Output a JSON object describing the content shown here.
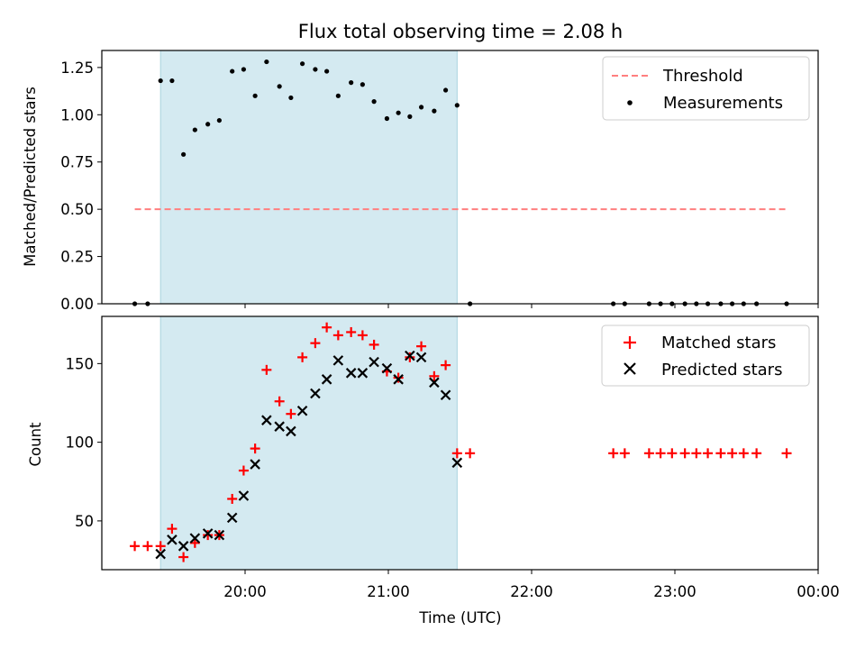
{
  "chart_data": [
    {
      "type": "scatter",
      "title": "Flux total observing time = 2.08 h",
      "ylabel": "Matched/Predicted stars",
      "xlabel": "",
      "ylim": [
        0,
        1.34
      ],
      "yticks": [
        "0.00",
        "0.25",
        "0.50",
        "0.75",
        "1.00",
        "1.25"
      ],
      "highlight_span": {
        "start_hour": 19.41,
        "end_hour": 21.48,
        "color": "#d4eaf1"
      },
      "threshold": {
        "name": "Threshold",
        "value": 0.5,
        "x_start_hour": 19.23,
        "x_end_hour": 23.78,
        "color": "#ff7f7f"
      },
      "series": [
        {
          "name": "Measurements",
          "color": "#000000",
          "x_hours": [
            19.23,
            19.32,
            19.41,
            19.49,
            19.57,
            19.65,
            19.74,
            19.82,
            19.91,
            19.99,
            20.07,
            20.15,
            20.24,
            20.32,
            20.4,
            20.49,
            20.57,
            20.65,
            20.74,
            20.82,
            20.9,
            20.99,
            21.07,
            21.15,
            21.23,
            21.32,
            21.4,
            21.48,
            21.57,
            22.57,
            22.65,
            22.82,
            22.9,
            22.98,
            23.07,
            23.15,
            23.23,
            23.32,
            23.4,
            23.48,
            23.57,
            23.78
          ],
          "values": [
            0.0,
            0.0,
            1.18,
            1.18,
            0.79,
            0.92,
            0.95,
            0.97,
            1.23,
            1.24,
            1.1,
            1.28,
            1.15,
            1.09,
            1.27,
            1.24,
            1.23,
            1.1,
            1.17,
            1.16,
            1.07,
            0.98,
            1.01,
            0.99,
            1.04,
            1.02,
            1.13,
            1.05,
            0.0,
            0.0,
            0.0,
            0.0,
            0.0,
            0.0,
            0.0,
            0.0,
            0.0,
            0.0,
            0.0,
            0.0,
            0.0,
            0.0
          ]
        }
      ]
    },
    {
      "type": "scatter",
      "title": "",
      "ylabel": "Count",
      "xlabel": "Time (UTC)",
      "ylim": [
        19,
        180
      ],
      "yticks": [
        "50",
        "100",
        "150"
      ],
      "xlim_hours": [
        19.0,
        24.0
      ],
      "xticks": [
        "20:00",
        "21:00",
        "22:00",
        "23:00",
        "00:00"
      ],
      "highlight_span": {
        "start_hour": 19.41,
        "end_hour": 21.48,
        "color": "#d4eaf1"
      },
      "series": [
        {
          "name": "Matched stars",
          "marker": "+",
          "color": "#ff0000",
          "x_hours": [
            19.23,
            19.32,
            19.41,
            19.49,
            19.57,
            19.65,
            19.74,
            19.82,
            19.91,
            19.99,
            20.07,
            20.15,
            20.24,
            20.32,
            20.4,
            20.49,
            20.57,
            20.65,
            20.74,
            20.82,
            20.9,
            20.99,
            21.07,
            21.15,
            21.23,
            21.32,
            21.4,
            21.48,
            21.57,
            22.57,
            22.65,
            22.82,
            22.9,
            22.98,
            23.07,
            23.15,
            23.23,
            23.32,
            23.4,
            23.48,
            23.57,
            23.78
          ],
          "values": [
            34,
            34,
            34,
            45,
            27,
            36,
            41,
            41,
            64,
            82,
            96,
            146,
            126,
            118,
            154,
            163,
            173,
            168,
            170,
            168,
            162,
            145,
            141,
            154,
            161,
            142,
            149,
            93,
            93,
            93,
            93,
            93,
            93,
            93,
            93,
            93,
            93,
            93,
            93,
            93,
            93,
            93
          ]
        },
        {
          "name": "Predicted stars",
          "marker": "x",
          "color": "#000000",
          "x_hours": [
            19.41,
            19.49,
            19.57,
            19.65,
            19.74,
            19.82,
            19.91,
            19.99,
            20.07,
            20.15,
            20.24,
            20.32,
            20.4,
            20.49,
            20.57,
            20.65,
            20.74,
            20.82,
            20.9,
            20.99,
            21.07,
            21.15,
            21.23,
            21.32,
            21.4,
            21.48
          ],
          "values": [
            29,
            38,
            34,
            39,
            42,
            41,
            52,
            66,
            86,
            114,
            110,
            107,
            120,
            131,
            140,
            152,
            144,
            144,
            151,
            147,
            140,
            155,
            154,
            138,
            130,
            87
          ]
        }
      ]
    }
  ]
}
